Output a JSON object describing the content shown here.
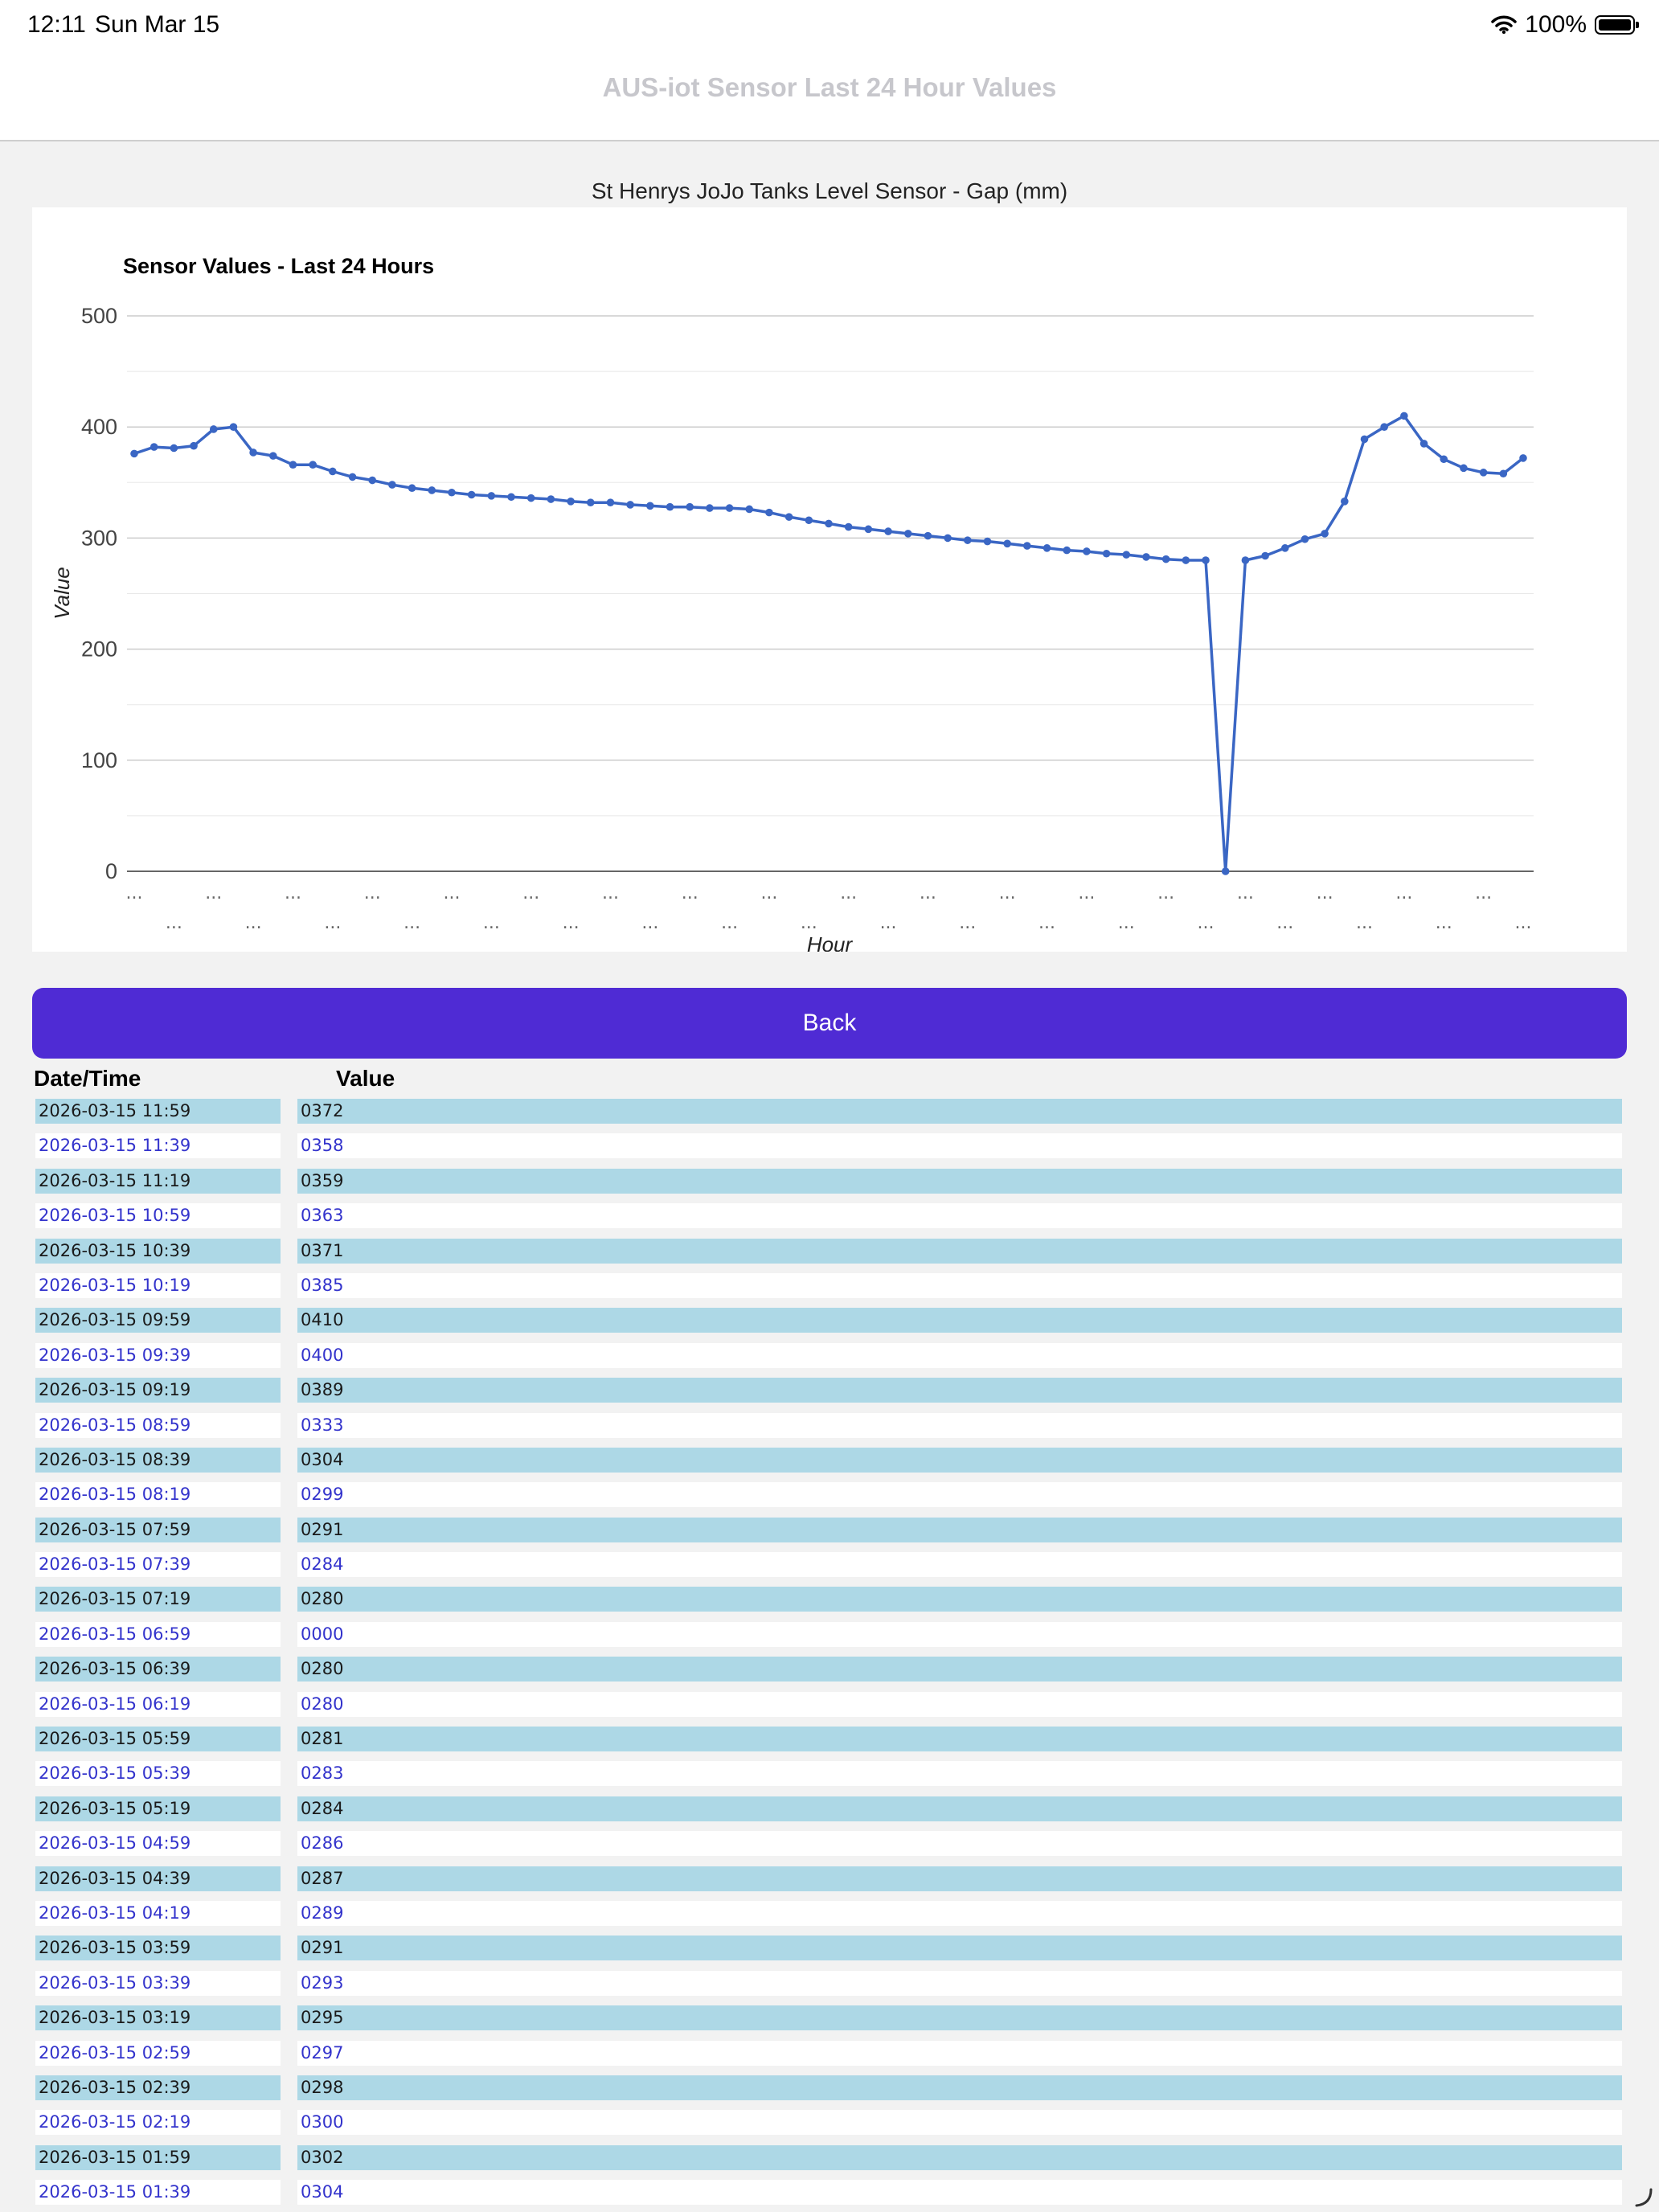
{
  "status_bar": {
    "time": "12:11",
    "date": "Sun Mar 15",
    "battery": "100%"
  },
  "nav": {
    "title": "AUS-iot Sensor Last 24 Hour Values"
  },
  "sensor_title": "St Henrys JoJo Tanks Level Sensor - Gap (mm)",
  "back_label": "Back",
  "table": {
    "headers": [
      "Date/Time",
      "Value"
    ],
    "rows": [
      [
        "2026-03-15 11:59",
        "0372"
      ],
      [
        "2026-03-15 11:39",
        "0358"
      ],
      [
        "2026-03-15 11:19",
        "0359"
      ],
      [
        "2026-03-15 10:59",
        "0363"
      ],
      [
        "2026-03-15 10:39",
        "0371"
      ],
      [
        "2026-03-15 10:19",
        "0385"
      ],
      [
        "2026-03-15 09:59",
        "0410"
      ],
      [
        "2026-03-15 09:39",
        "0400"
      ],
      [
        "2026-03-15 09:19",
        "0389"
      ],
      [
        "2026-03-15 08:59",
        "0333"
      ],
      [
        "2026-03-15 08:39",
        "0304"
      ],
      [
        "2026-03-15 08:19",
        "0299"
      ],
      [
        "2026-03-15 07:59",
        "0291"
      ],
      [
        "2026-03-15 07:39",
        "0284"
      ],
      [
        "2026-03-15 07:19",
        "0280"
      ],
      [
        "2026-03-15 06:59",
        "0000"
      ],
      [
        "2026-03-15 06:39",
        "0280"
      ],
      [
        "2026-03-15 06:19",
        "0280"
      ],
      [
        "2026-03-15 05:59",
        "0281"
      ],
      [
        "2026-03-15 05:39",
        "0283"
      ],
      [
        "2026-03-15 05:19",
        "0284"
      ],
      [
        "2026-03-15 04:59",
        "0286"
      ],
      [
        "2026-03-15 04:39",
        "0287"
      ],
      [
        "2026-03-15 04:19",
        "0289"
      ],
      [
        "2026-03-15 03:59",
        "0291"
      ],
      [
        "2026-03-15 03:39",
        "0293"
      ],
      [
        "2026-03-15 03:19",
        "0295"
      ],
      [
        "2026-03-15 02:59",
        "0297"
      ],
      [
        "2026-03-15 02:39",
        "0298"
      ],
      [
        "2026-03-15 02:19",
        "0300"
      ],
      [
        "2026-03-15 01:59",
        "0302"
      ],
      [
        "2026-03-15 01:39",
        "0304"
      ]
    ]
  },
  "chart_data": {
    "type": "line",
    "title": "Sensor Values - Last 24 Hours",
    "xlabel": "Hour",
    "ylabel": "Value",
    "ylim": [
      0,
      500
    ],
    "yticks": [
      0,
      100,
      200,
      300,
      400,
      500
    ],
    "grid": true,
    "xtick_label": "...",
    "line_color": "#3a66c4",
    "series": [
      {
        "values": [
          376,
          382,
          381,
          383,
          398,
          400,
          377,
          374,
          366,
          366,
          360,
          355,
          352,
          348,
          345,
          343,
          341,
          339,
          338,
          337,
          336,
          335,
          333,
          332,
          332,
          330,
          329,
          328,
          328,
          327,
          327,
          326,
          323,
          319,
          316,
          313,
          310,
          308,
          306,
          304,
          302,
          300,
          298,
          297,
          295,
          293,
          291,
          289,
          288,
          286,
          285,
          283,
          281,
          280,
          280,
          0,
          280,
          284,
          291,
          299,
          304,
          333,
          389,
          400,
          410,
          385,
          371,
          363,
          359,
          358,
          372
        ]
      }
    ]
  }
}
